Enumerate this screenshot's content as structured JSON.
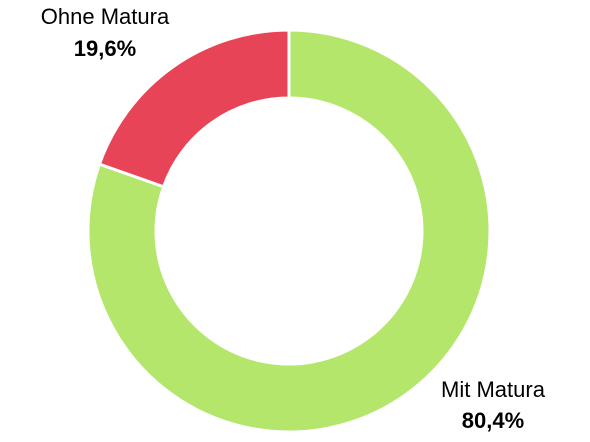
{
  "chart_data": {
    "type": "donut",
    "categories": [
      "Mit Matura",
      "Ohne Matura"
    ],
    "values": [
      80.4,
      19.6
    ],
    "value_labels": [
      "80,4%",
      "19,6%"
    ],
    "colors": [
      "#b3e66a",
      "#e84457"
    ]
  }
}
